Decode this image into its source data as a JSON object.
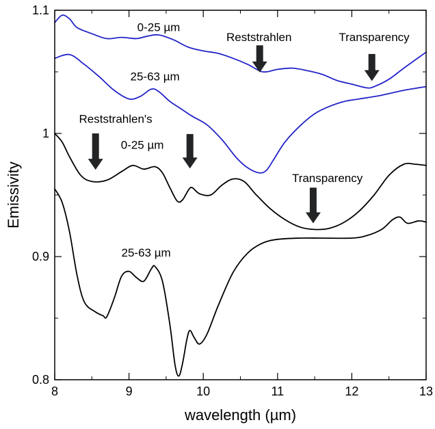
{
  "chart_data": {
    "type": "line",
    "xlabel": "wavelength (µm)",
    "ylabel": "Emissivity",
    "xlim": [
      8,
      13
    ],
    "ylim": [
      0.8,
      1.1
    ],
    "x_ticks": [
      "8",
      "9",
      "10",
      "11",
      "12",
      "13"
    ],
    "y_ticks": [
      "0.8",
      "0.9",
      "1",
      "1.1"
    ],
    "grid": false,
    "legend": "none",
    "colors": {
      "blue": "#2323c8",
      "black": "#000000",
      "arrow": "#222426"
    },
    "series": [
      {
        "color": "#2323c8",
        "x": [
          8.0,
          8.1,
          8.2,
          8.3,
          8.5,
          8.7,
          8.9,
          9.1,
          9.25,
          9.4,
          9.6,
          9.8,
          10.0,
          10.2,
          10.4,
          10.6,
          10.8,
          11.0,
          11.2,
          11.4,
          11.6,
          11.8,
          12.0,
          12.2,
          12.3,
          12.5,
          12.7,
          13.0
        ],
        "y": [
          1.09,
          1.096,
          1.093,
          1.086,
          1.081,
          1.077,
          1.078,
          1.077,
          1.079,
          1.08,
          1.076,
          1.07,
          1.067,
          1.065,
          1.061,
          1.056,
          1.05,
          1.052,
          1.053,
          1.051,
          1.048,
          1.043,
          1.04,
          1.037,
          1.038,
          1.044,
          1.053,
          1.066
        ]
      },
      {
        "color": "#2323c8",
        "x": [
          8.0,
          8.2,
          8.4,
          8.6,
          8.8,
          9.0,
          9.15,
          9.3,
          9.4,
          9.55,
          9.7,
          9.85,
          10.05,
          10.25,
          10.45,
          10.6,
          10.75,
          10.85,
          10.95,
          11.1,
          11.3,
          11.5,
          11.7,
          11.9,
          12.1,
          12.4,
          12.7,
          13.0
        ],
        "y": [
          1.061,
          1.064,
          1.056,
          1.046,
          1.035,
          1.028,
          1.03,
          1.036,
          1.034,
          1.026,
          1.02,
          1.014,
          1.007,
          0.995,
          0.98,
          0.972,
          0.968,
          0.97,
          0.979,
          0.993,
          1.006,
          1.016,
          1.022,
          1.026,
          1.028,
          1.031,
          1.035,
          1.038
        ]
      },
      {
        "color": "#000000",
        "x": [
          8.0,
          8.1,
          8.2,
          8.35,
          8.5,
          8.7,
          8.9,
          9.05,
          9.2,
          9.35,
          9.45,
          9.55,
          9.65,
          9.72,
          9.8,
          9.85,
          9.95,
          10.1,
          10.25,
          10.4,
          10.55,
          10.7,
          10.9,
          11.1,
          11.3,
          11.5,
          11.7,
          11.9,
          12.1,
          12.3,
          12.5,
          12.7,
          12.85,
          13.0
        ],
        "y": [
          1.0,
          0.993,
          0.981,
          0.966,
          0.961,
          0.962,
          0.969,
          0.974,
          0.971,
          0.973,
          0.968,
          0.956,
          0.945,
          0.946,
          0.954,
          0.956,
          0.951,
          0.95,
          0.958,
          0.963,
          0.961,
          0.951,
          0.939,
          0.93,
          0.924,
          0.922,
          0.923,
          0.928,
          0.937,
          0.95,
          0.966,
          0.975,
          0.975,
          0.974
        ]
      },
      {
        "color": "#000000",
        "x": [
          8.0,
          8.1,
          8.2,
          8.3,
          8.4,
          8.55,
          8.65,
          8.7,
          8.8,
          8.9,
          9.0,
          9.1,
          9.2,
          9.3,
          9.35,
          9.45,
          9.55,
          9.62,
          9.67,
          9.72,
          9.78,
          9.82,
          9.88,
          9.95,
          10.05,
          10.2,
          10.4,
          10.6,
          10.8,
          11.0,
          11.3,
          11.6,
          12.0,
          12.2,
          12.4,
          12.55,
          12.65,
          12.75,
          12.9,
          13.0
        ],
        "y": [
          0.955,
          0.944,
          0.92,
          0.885,
          0.863,
          0.855,
          0.852,
          0.851,
          0.866,
          0.884,
          0.888,
          0.883,
          0.88,
          0.89,
          0.892,
          0.88,
          0.845,
          0.812,
          0.803,
          0.813,
          0.833,
          0.84,
          0.834,
          0.829,
          0.837,
          0.86,
          0.887,
          0.903,
          0.911,
          0.914,
          0.915,
          0.915,
          0.915,
          0.917,
          0.922,
          0.93,
          0.932,
          0.927,
          0.929,
          0.928
        ]
      }
    ],
    "annotations": [
      {
        "text": "0-25 µm",
        "x": 9.4,
        "y": 1.083
      },
      {
        "text": "Reststrahlen",
        "x": 10.75,
        "y": 1.075
      },
      {
        "text": "Transparency",
        "x": 12.3,
        "y": 1.075
      },
      {
        "text": "25-63 µm",
        "x": 9.35,
        "y": 1.043
      },
      {
        "text": "Reststrahlen's",
        "x": 8.82,
        "y": 1.0085
      },
      {
        "text": "0-25 µm",
        "x": 9.18,
        "y": 0.9875
      },
      {
        "text": "Transparency",
        "x": 11.67,
        "y": 0.9605
      },
      {
        "text": "25-63 µm",
        "x": 9.23,
        "y": 0.9
      }
    ],
    "arrows": [
      {
        "x": 10.76,
        "y_top": 1.0715,
        "y_tip": 1.0495
      },
      {
        "x": 12.27,
        "y_top": 1.0645,
        "y_tip": 1.0425
      },
      {
        "x": 8.55,
        "y_top": 1.0,
        "y_tip": 0.9705
      },
      {
        "x": 9.82,
        "y_top": 0.9995,
        "y_tip": 0.9715
      },
      {
        "x": 11.48,
        "y_top": 0.956,
        "y_tip": 0.927
      }
    ]
  }
}
